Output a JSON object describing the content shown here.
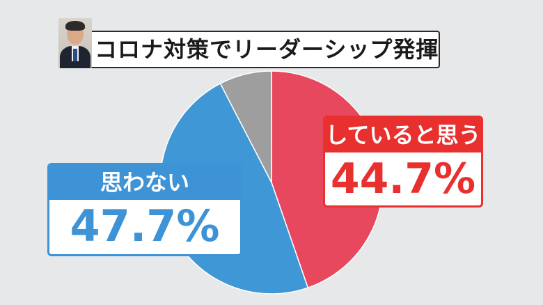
{
  "title": "コロナ対策でリーダーシップ発揮",
  "colors": {
    "yes": "#e8485e",
    "no": "#4097d6",
    "other": "#9e9e9e",
    "yes_label": "#e8302f",
    "no_label": "#3d93d6"
  },
  "chart_data": {
    "type": "pie",
    "title": "コロナ対策でリーダーシップ発揮",
    "slices": [
      {
        "label": "していると思う",
        "value": 44.7,
        "display": "44.7%",
        "color": "#e8485e"
      },
      {
        "label": "思わない",
        "value": 47.7,
        "display": "47.7%",
        "color": "#4097d6"
      },
      {
        "label": "",
        "value": 7.6,
        "display": "",
        "color": "#9e9e9e"
      }
    ],
    "start_angle_deg": 0,
    "direction": "clockwise"
  }
}
